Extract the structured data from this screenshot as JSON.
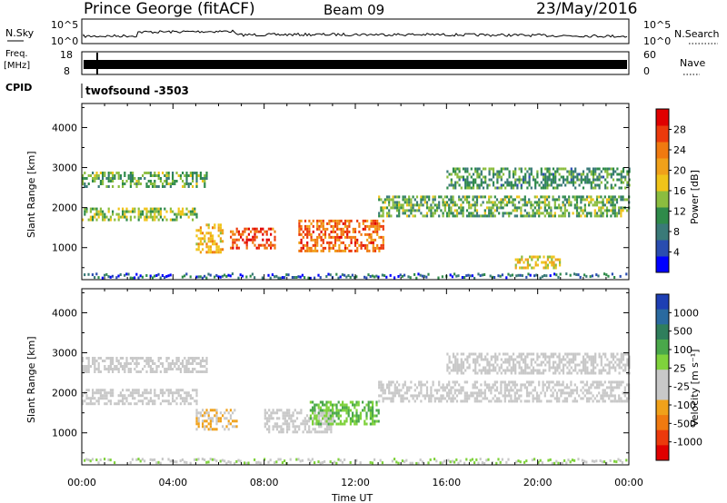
{
  "header": {
    "station": "Prince George (fitACF)",
    "beam": "Beam 09",
    "date": "23/May/2016"
  },
  "panels": {
    "nsky_label": "N.Sky",
    "nsky_ticks": [
      "10^5",
      "10^0"
    ],
    "nsearch_label": "N.Search",
    "nsearch_ticks": [
      "10^5",
      "10^0"
    ],
    "freq_label_1": "Freq.",
    "freq_label_2": "[MHz]",
    "freq_ticks": [
      "18",
      "8"
    ],
    "nave_label": "Nave",
    "nave_ticks": [
      "60",
      "0"
    ],
    "cpid_label": "CPID",
    "cpid_value": "twofsound -3503"
  },
  "chart_data": [
    {
      "type": "heatmap",
      "title": "",
      "xlabel": "",
      "ylabel": "Slant Range [km]",
      "xlim": [
        0,
        24
      ],
      "ylim": [
        200,
        4600
      ],
      "y_ticks": [
        "1000",
        "2000",
        "3000",
        "4000"
      ],
      "colorbar": {
        "label": "Power [dB]",
        "range": [
          0,
          32
        ],
        "ticks": [
          "4",
          "8",
          "12",
          "16",
          "20",
          "24",
          "28"
        ],
        "colors": [
          "#0000ff",
          "#2a4db0",
          "#3a7a78",
          "#2f8b4a",
          "#8bbd3f",
          "#f0c419",
          "#f0a11a",
          "#f07a10",
          "#ec3a0c",
          "#e00000"
        ]
      },
      "features": [
        {
          "x": [
            0,
            5.5
          ],
          "y": [
            2500,
            2900
          ],
          "level": 12
        },
        {
          "x": [
            0,
            5.0
          ],
          "y": [
            1700,
            2000
          ],
          "level": 14
        },
        {
          "x": [
            5.0,
            6.2
          ],
          "y": [
            900,
            1600
          ],
          "level": 20
        },
        {
          "x": [
            6.5,
            8.5
          ],
          "y": [
            1000,
            1500
          ],
          "level": 28
        },
        {
          "x": [
            9.5,
            13.2
          ],
          "y": [
            900,
            1700
          ],
          "level": 26
        },
        {
          "x": [
            13.0,
            24.0
          ],
          "y": [
            1800,
            2300
          ],
          "level": 12
        },
        {
          "x": [
            16.0,
            24.0
          ],
          "y": [
            2500,
            3000
          ],
          "level": 10
        },
        {
          "x": [
            19.0,
            21.0
          ],
          "y": [
            500,
            800
          ],
          "level": 18
        }
      ]
    },
    {
      "type": "heatmap",
      "title": "",
      "xlabel": "Time UT",
      "ylabel": "Slant Range [km]",
      "xlim": [
        0,
        24
      ],
      "ylim": [
        200,
        4600
      ],
      "x_ticks": [
        "00:00",
        "04:00",
        "08:00",
        "12:00",
        "16:00",
        "20:00",
        "00:00"
      ],
      "y_ticks": [
        "1000",
        "2000",
        "3000",
        "4000"
      ],
      "colorbar": {
        "label": "Velocity [m s⁻¹]",
        "range": [
          -1000,
          1000
        ],
        "ticks": [
          "1000",
          "500",
          "100",
          "25",
          "-25",
          "-100",
          "-500",
          "-1000"
        ],
        "colors": [
          "#1e3fb4",
          "#2a6aa0",
          "#2f7e5c",
          "#4aa84a",
          "#7fd23c",
          "#c8c8c8",
          "#c8c8c8",
          "#f0a11a",
          "#f07a10",
          "#ec3a0c",
          "#e00000"
        ]
      },
      "features": [
        {
          "x": [
            0,
            5.5
          ],
          "y": [
            2500,
            2900
          ],
          "value": 0
        },
        {
          "x": [
            0,
            5.0
          ],
          "y": [
            1700,
            2100
          ],
          "value": 0
        },
        {
          "x": [
            5.0,
            6.8
          ],
          "y": [
            1100,
            1600
          ],
          "value": -300
        },
        {
          "x": [
            8.0,
            11.0
          ],
          "y": [
            1000,
            1600
          ],
          "value": 0
        },
        {
          "x": [
            10.0,
            13.0
          ],
          "y": [
            1200,
            1800
          ],
          "value": 300
        },
        {
          "x": [
            13.0,
            24.0
          ],
          "y": [
            1800,
            2300
          ],
          "value": 0
        },
        {
          "x": [
            16.0,
            24.0
          ],
          "y": [
            2500,
            3000
          ],
          "value": 0
        }
      ]
    }
  ]
}
